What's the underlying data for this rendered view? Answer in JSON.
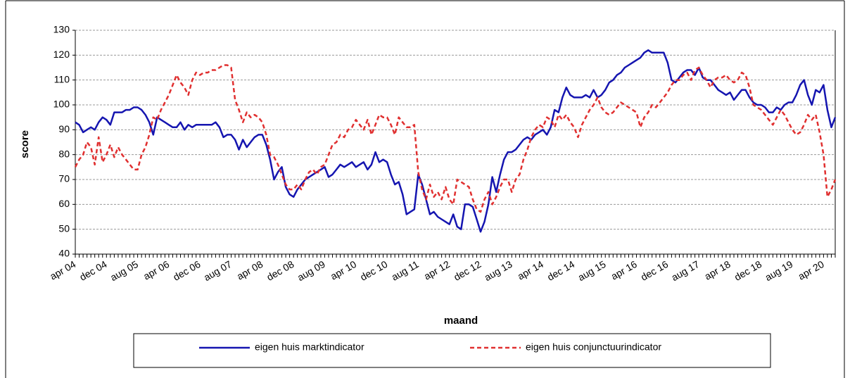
{
  "chart_data": {
    "type": "line",
    "x_label": "maand",
    "y_label": "score",
    "categories": [
      "apr 04",
      null,
      null,
      null,
      null,
      null,
      null,
      null,
      "dec 04",
      null,
      null,
      null,
      null,
      null,
      null,
      null,
      "aug 05",
      null,
      null,
      null,
      null,
      null,
      null,
      null,
      "apr 06",
      null,
      null,
      null,
      null,
      null,
      null,
      null,
      "dec 06",
      null,
      null,
      null,
      null,
      null,
      null,
      null,
      "aug 07",
      null,
      null,
      null,
      null,
      null,
      null,
      null,
      "apr 08",
      null,
      null,
      null,
      null,
      null,
      null,
      null,
      "dec 08",
      null,
      null,
      null,
      null,
      null,
      null,
      null,
      "aug 09",
      null,
      null,
      null,
      null,
      null,
      null,
      null,
      "apr 10",
      null,
      null,
      null,
      null,
      null,
      null,
      null,
      "dec 10",
      null,
      null,
      null,
      null,
      null,
      null,
      null,
      "aug 11",
      null,
      null,
      null,
      null,
      null,
      null,
      null,
      "apr 12",
      null,
      null,
      null,
      null,
      null,
      null,
      null,
      "dec 12",
      null,
      null,
      null,
      null,
      null,
      null,
      null,
      "aug 13",
      null,
      null,
      null,
      null,
      null,
      null,
      null,
      "apr 14",
      null,
      null,
      null,
      null,
      null,
      null,
      null,
      "dec 14",
      null,
      null,
      null,
      null,
      null,
      null,
      null,
      "aug 15",
      null,
      null,
      null,
      null,
      null,
      null,
      null,
      "apr 16",
      null,
      null,
      null,
      null,
      null,
      null,
      null,
      "dec 16",
      null,
      null,
      null,
      null,
      null,
      null,
      null,
      "aug 17",
      null,
      null,
      null,
      null,
      null,
      null,
      null,
      "apr 18",
      null,
      null,
      null,
      null,
      null,
      null,
      null,
      "dec 18",
      null,
      null,
      null,
      null,
      null,
      null,
      null,
      "aug 19",
      null,
      null,
      null,
      null,
      null,
      null,
      null,
      "apr 20",
      null,
      null,
      null
    ],
    "series": [
      {
        "name": "eigen huis marktindicator",
        "color": "#1515b0",
        "dash": false,
        "values": [
          93,
          92,
          89,
          90,
          91,
          90,
          93,
          95,
          94,
          92,
          97,
          97,
          97,
          98,
          98,
          99,
          99,
          98,
          96,
          93,
          88,
          95,
          94,
          93,
          92,
          91,
          91,
          93,
          90,
          92,
          91,
          92,
          92,
          92,
          92,
          92,
          93,
          91,
          87,
          88,
          88,
          86,
          82,
          86,
          83,
          85,
          87,
          88,
          88,
          84,
          78,
          70,
          73,
          75,
          67,
          64,
          63,
          66,
          68,
          70,
          71,
          72,
          73,
          74,
          75,
          71,
          72,
          74,
          76,
          75,
          76,
          77,
          75,
          76,
          77,
          74,
          76,
          81,
          77,
          78,
          77,
          72,
          68,
          69,
          64,
          56,
          57,
          58,
          72,
          68,
          62,
          56,
          57,
          55,
          54,
          53,
          52,
          56,
          51,
          50,
          60,
          60,
          59,
          54,
          49,
          53,
          60,
          71,
          65,
          72,
          78,
          81,
          81,
          82,
          84,
          86,
          87,
          86,
          88,
          89,
          90,
          88,
          91,
          98,
          97,
          103,
          107,
          104,
          103,
          103,
          103,
          104,
          103,
          106,
          103,
          104,
          106,
          109,
          110,
          112,
          113,
          115,
          116,
          117,
          118,
          119,
          121,
          122,
          121,
          121,
          121,
          121,
          117,
          110,
          109,
          111,
          113,
          114,
          114,
          112,
          115,
          111,
          110,
          110,
          108,
          106,
          105,
          104,
          105,
          102,
          104,
          106,
          106,
          103,
          101,
          100,
          100,
          99,
          97,
          97,
          99,
          98,
          100,
          101,
          101,
          104,
          108,
          110,
          104,
          100,
          106,
          105,
          108,
          98,
          91,
          95
        ]
      },
      {
        "name": "eigen huis conjunctuurindicator",
        "color": "#e03030",
        "dash": true,
        "values": [
          75,
          78,
          80,
          85,
          83,
          76,
          87,
          77,
          80,
          84,
          79,
          83,
          80,
          78,
          76,
          74,
          74,
          80,
          83,
          88,
          95,
          94,
          98,
          101,
          104,
          108,
          112,
          109,
          107,
          104,
          110,
          113,
          112,
          113,
          113,
          114,
          114,
          115,
          116,
          116,
          115,
          102,
          98,
          93,
          97,
          95,
          96,
          95,
          93,
          88,
          80,
          79,
          76,
          72,
          68,
          66,
          66,
          68,
          66,
          70,
          73,
          74,
          72,
          75,
          76,
          80,
          84,
          85,
          88,
          87,
          90,
          91,
          94,
          92,
          90,
          94,
          88,
          92,
          96,
          95,
          95,
          92,
          88,
          95,
          93,
          91,
          91,
          92,
          73,
          66,
          62,
          68,
          63,
          65,
          62,
          67,
          62,
          60,
          70,
          69,
          68,
          67,
          62,
          58,
          57,
          62,
          65,
          60,
          63,
          67,
          70,
          70,
          65,
          70,
          72,
          78,
          82,
          87,
          90,
          92,
          91,
          95,
          94,
          91,
          96,
          94,
          96,
          93,
          91,
          87,
          92,
          95,
          98,
          100,
          103,
          99,
          97,
          96,
          97,
          99,
          101,
          100,
          99,
          98,
          97,
          91,
          95,
          97,
          100,
          99,
          101,
          103,
          105,
          108,
          110,
          110,
          112,
          113,
          110,
          114,
          115,
          112,
          110,
          107,
          110,
          111,
          111,
          112,
          110,
          109,
          110,
          113,
          112,
          107,
          100,
          99,
          98,
          96,
          94,
          92,
          95,
          98,
          96,
          93,
          90,
          88,
          89,
          92,
          96,
          94,
          96,
          89,
          80,
          63,
          66,
          70
        ]
      }
    ],
    "ylim": [
      40,
      130
    ],
    "yticks": [
      40,
      50,
      60,
      70,
      80,
      90,
      100,
      110,
      120,
      130
    ],
    "grid": true,
    "legend": "bottom"
  }
}
